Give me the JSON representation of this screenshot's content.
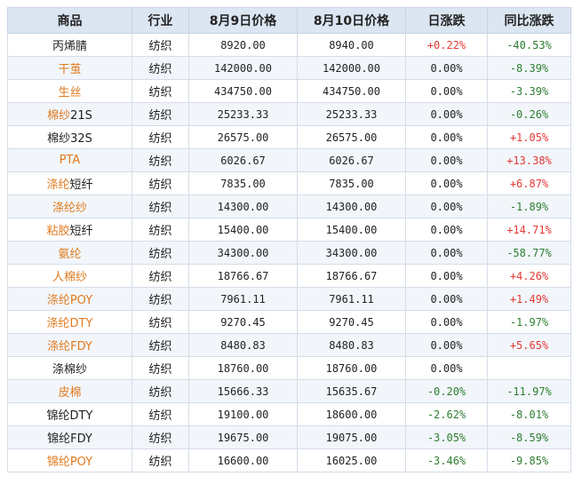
{
  "headers": [
    "商品",
    "行业",
    "8月9日价格",
    "8月10日价格",
    "日涨跌",
    "同比涨跌"
  ],
  "rows": [
    {
      "parts": [
        {
          "text": "丙烯腈",
          "link": false
        }
      ],
      "industry": "纺织",
      "price_aug9": "8920.00",
      "price_aug10": "8940.00",
      "daily": "+0.22%",
      "daily_dir": "up",
      "yoy": "-40.53%",
      "yoy_dir": "down"
    },
    {
      "parts": [
        {
          "text": "干茧",
          "link": true
        }
      ],
      "industry": "纺织",
      "price_aug9": "142000.00",
      "price_aug10": "142000.00",
      "daily": "0.00%",
      "daily_dir": "flat",
      "yoy": "-8.39%",
      "yoy_dir": "down"
    },
    {
      "parts": [
        {
          "text": "生丝",
          "link": true
        }
      ],
      "industry": "纺织",
      "price_aug9": "434750.00",
      "price_aug10": "434750.00",
      "daily": "0.00%",
      "daily_dir": "flat",
      "yoy": "-3.39%",
      "yoy_dir": "down"
    },
    {
      "parts": [
        {
          "text": "棉纱",
          "link": true
        },
        {
          "text": "21S",
          "link": false
        }
      ],
      "industry": "纺织",
      "price_aug9": "25233.33",
      "price_aug10": "25233.33",
      "daily": "0.00%",
      "daily_dir": "flat",
      "yoy": "-0.26%",
      "yoy_dir": "down"
    },
    {
      "parts": [
        {
          "text": "棉纱32S",
          "link": false
        }
      ],
      "industry": "纺织",
      "price_aug9": "26575.00",
      "price_aug10": "26575.00",
      "daily": "0.00%",
      "daily_dir": "flat",
      "yoy": "+1.05%",
      "yoy_dir": "up"
    },
    {
      "parts": [
        {
          "text": "PTA",
          "link": true
        }
      ],
      "industry": "纺织",
      "price_aug9": "6026.67",
      "price_aug10": "6026.67",
      "daily": "0.00%",
      "daily_dir": "flat",
      "yoy": "+13.38%",
      "yoy_dir": "up"
    },
    {
      "parts": [
        {
          "text": "涤纶",
          "link": true
        },
        {
          "text": "短纤",
          "link": false
        }
      ],
      "industry": "纺织",
      "price_aug9": "7835.00",
      "price_aug10": "7835.00",
      "daily": "0.00%",
      "daily_dir": "flat",
      "yoy": "+6.87%",
      "yoy_dir": "up"
    },
    {
      "parts": [
        {
          "text": "涤纶纱",
          "link": true
        }
      ],
      "industry": "纺织",
      "price_aug9": "14300.00",
      "price_aug10": "14300.00",
      "daily": "0.00%",
      "daily_dir": "flat",
      "yoy": "-1.89%",
      "yoy_dir": "down"
    },
    {
      "parts": [
        {
          "text": "粘胶",
          "link": true
        },
        {
          "text": "短纤",
          "link": false
        }
      ],
      "industry": "纺织",
      "price_aug9": "15400.00",
      "price_aug10": "15400.00",
      "daily": "0.00%",
      "daily_dir": "flat",
      "yoy": "+14.71%",
      "yoy_dir": "up"
    },
    {
      "parts": [
        {
          "text": "氨纶",
          "link": true
        }
      ],
      "industry": "纺织",
      "price_aug9": "34300.00",
      "price_aug10": "34300.00",
      "daily": "0.00%",
      "daily_dir": "flat",
      "yoy": "-58.77%",
      "yoy_dir": "down"
    },
    {
      "parts": [
        {
          "text": "人棉纱",
          "link": true
        }
      ],
      "industry": "纺织",
      "price_aug9": "18766.67",
      "price_aug10": "18766.67",
      "daily": "0.00%",
      "daily_dir": "flat",
      "yoy": "+4.26%",
      "yoy_dir": "up"
    },
    {
      "parts": [
        {
          "text": "涤纶POY",
          "link": true
        }
      ],
      "industry": "纺织",
      "price_aug9": "7961.11",
      "price_aug10": "7961.11",
      "daily": "0.00%",
      "daily_dir": "flat",
      "yoy": "+1.49%",
      "yoy_dir": "up"
    },
    {
      "parts": [
        {
          "text": "涤纶DTY",
          "link": true
        }
      ],
      "industry": "纺织",
      "price_aug9": "9270.45",
      "price_aug10": "9270.45",
      "daily": "0.00%",
      "daily_dir": "flat",
      "yoy": "-1.97%",
      "yoy_dir": "down"
    },
    {
      "parts": [
        {
          "text": "涤纶FDY",
          "link": true
        }
      ],
      "industry": "纺织",
      "price_aug9": "8480.83",
      "price_aug10": "8480.83",
      "daily": "0.00%",
      "daily_dir": "flat",
      "yoy": "+5.65%",
      "yoy_dir": "up"
    },
    {
      "parts": [
        {
          "text": "涤棉纱",
          "link": false
        }
      ],
      "industry": "纺织",
      "price_aug9": "18760.00",
      "price_aug10": "18760.00",
      "daily": "0.00%",
      "daily_dir": "flat",
      "yoy": "",
      "yoy_dir": "flat"
    },
    {
      "parts": [
        {
          "text": "皮棉",
          "link": true
        }
      ],
      "industry": "纺织",
      "price_aug9": "15666.33",
      "price_aug10": "15635.67",
      "daily": "-0.20%",
      "daily_dir": "down",
      "yoy": "-11.97%",
      "yoy_dir": "down"
    },
    {
      "parts": [
        {
          "text": "锦纶DTY",
          "link": false
        }
      ],
      "industry": "纺织",
      "price_aug9": "19100.00",
      "price_aug10": "18600.00",
      "daily": "-2.62%",
      "daily_dir": "down",
      "yoy": "-8.01%",
      "yoy_dir": "down"
    },
    {
      "parts": [
        {
          "text": "锦纶FDY",
          "link": false
        }
      ],
      "industry": "纺织",
      "price_aug9": "19675.00",
      "price_aug10": "19075.00",
      "daily": "-3.05%",
      "daily_dir": "down",
      "yoy": "-8.59%",
      "yoy_dir": "down"
    },
    {
      "parts": [
        {
          "text": "锦纶POY",
          "link": true
        }
      ],
      "industry": "纺织",
      "price_aug9": "16600.00",
      "price_aug10": "16025.00",
      "daily": "-3.46%",
      "daily_dir": "down",
      "yoy": "-9.85%",
      "yoy_dir": "down"
    }
  ],
  "colors": {
    "header_bg": "#dce6f2",
    "alt_row_bg": "#f2f6fb",
    "link": "#e07a1f",
    "up": "#e53935",
    "down": "#2e7d32",
    "border": "#d5dde8"
  }
}
